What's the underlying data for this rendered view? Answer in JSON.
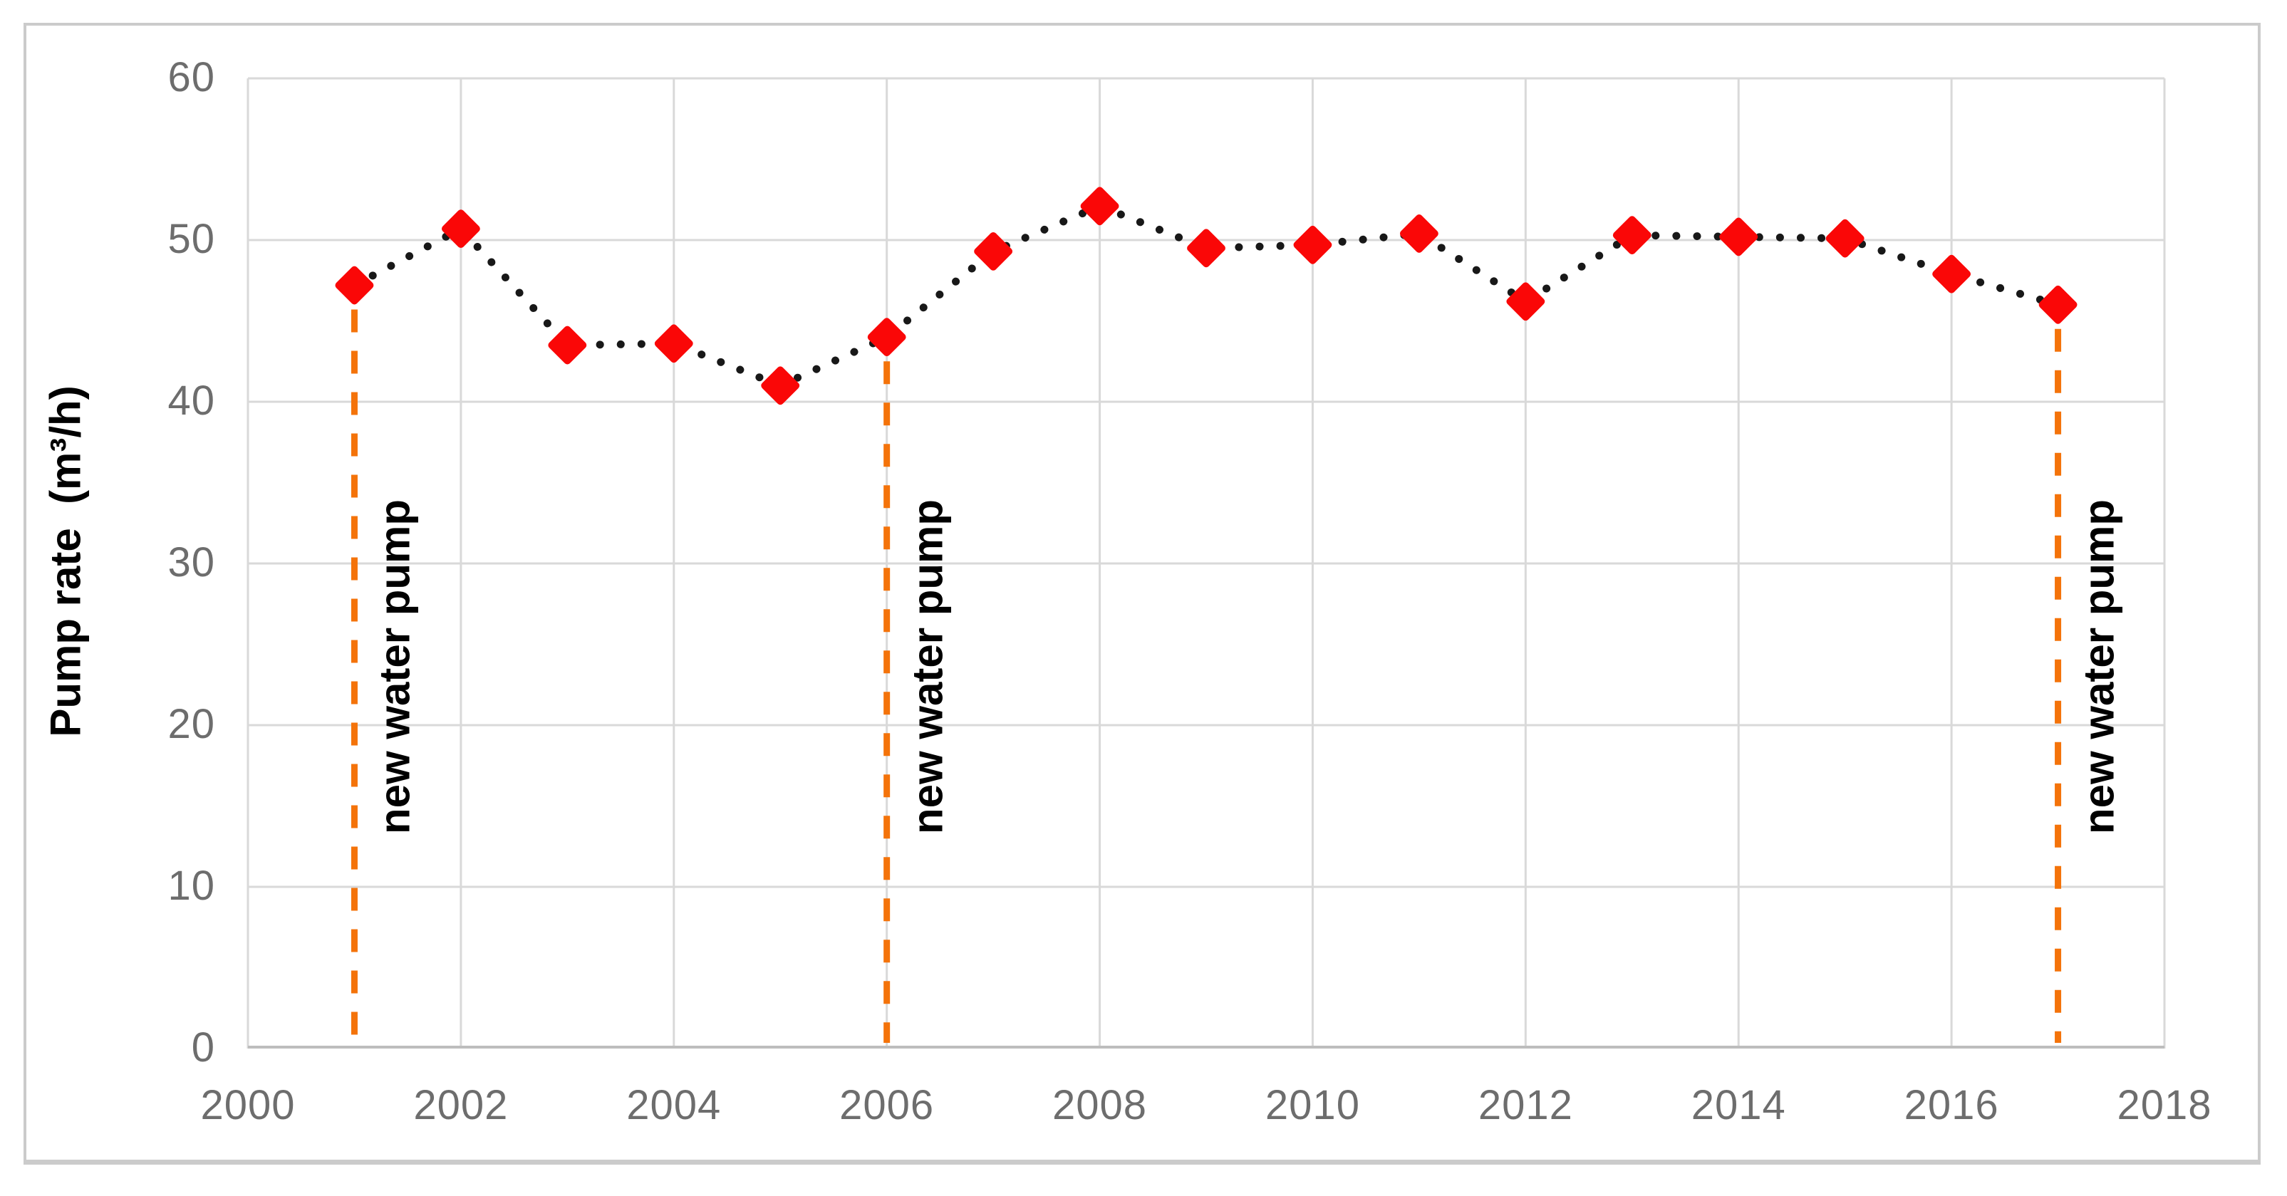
{
  "figure": {
    "background": "#ffffff",
    "border_color": "#cbcbcb"
  },
  "chart_data": {
    "type": "line",
    "title": "",
    "xlabel": "",
    "ylabel": "Pump rate  (m³/h)",
    "x": [
      2001,
      2002,
      2003,
      2004,
      2005,
      2006,
      2007,
      2008,
      2009,
      2010,
      2011,
      2012,
      2013,
      2014,
      2015,
      2016,
      2017
    ],
    "series": [
      {
        "name": "Pump rate",
        "values": [
          47.2,
          50.7,
          43.5,
          43.6,
          41.0,
          44.0,
          49.3,
          52.1,
          49.5,
          49.7,
          50.4,
          46.2,
          50.3,
          50.2,
          50.1,
          47.9,
          46.0
        ]
      }
    ],
    "xlim": [
      2000,
      2018
    ],
    "ylim": [
      0,
      60
    ],
    "x_ticks": [
      2000,
      2002,
      2004,
      2006,
      2008,
      2010,
      2012,
      2014,
      2016,
      2018
    ],
    "y_ticks": [
      0,
      10,
      20,
      30,
      40,
      50,
      60
    ],
    "grid": true,
    "legend": "none",
    "marker": "diamond",
    "marker_color": "#fa0707",
    "line_style": "dotted",
    "line_color": "#181818",
    "gridline_color": "#d9d9d9",
    "axis_line_color": "#bdbdbd",
    "tick_color": "#6d6d6d",
    "annotation_line_color": "#f4730a",
    "annotations": [
      {
        "year": 2001,
        "label": "new water pump"
      },
      {
        "year": 2006,
        "label": "new water pump"
      },
      {
        "year": 2017,
        "label": "new water pump"
      }
    ]
  }
}
